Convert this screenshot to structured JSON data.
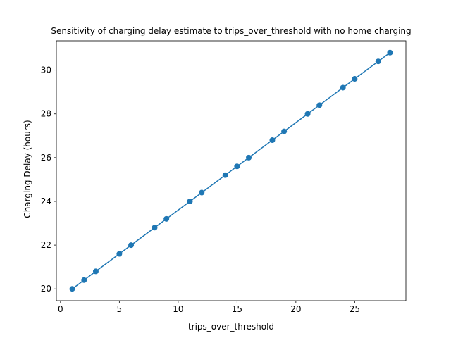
{
  "chart_data": {
    "type": "line",
    "title": "Sensitivity of charging delay estimate to trips_over_threshold with no home charging",
    "xlabel": "trips_over_threshold",
    "ylabel": "Charging Delay (hours)",
    "xlim": [
      -0.35,
      29.35
    ],
    "ylim": [
      19.46,
      31.34
    ],
    "xticks": [
      0,
      5,
      10,
      15,
      20,
      25
    ],
    "yticks": [
      20,
      22,
      24,
      26,
      28,
      30
    ],
    "grid": false,
    "series": [
      {
        "color": "#1f77b4",
        "marker": "circle",
        "x": [
          1,
          2,
          3,
          5,
          6,
          8,
          9,
          11,
          12,
          14,
          15,
          16,
          18,
          19,
          21,
          22,
          24,
          25,
          27,
          28
        ],
        "y": [
          20.0,
          20.4,
          20.8,
          21.6,
          22.0,
          22.8,
          23.2,
          24.0,
          24.4,
          25.2,
          25.6,
          26.0,
          26.8,
          27.2,
          28.0,
          28.4,
          29.2,
          29.6,
          30.4,
          30.8
        ]
      }
    ]
  }
}
